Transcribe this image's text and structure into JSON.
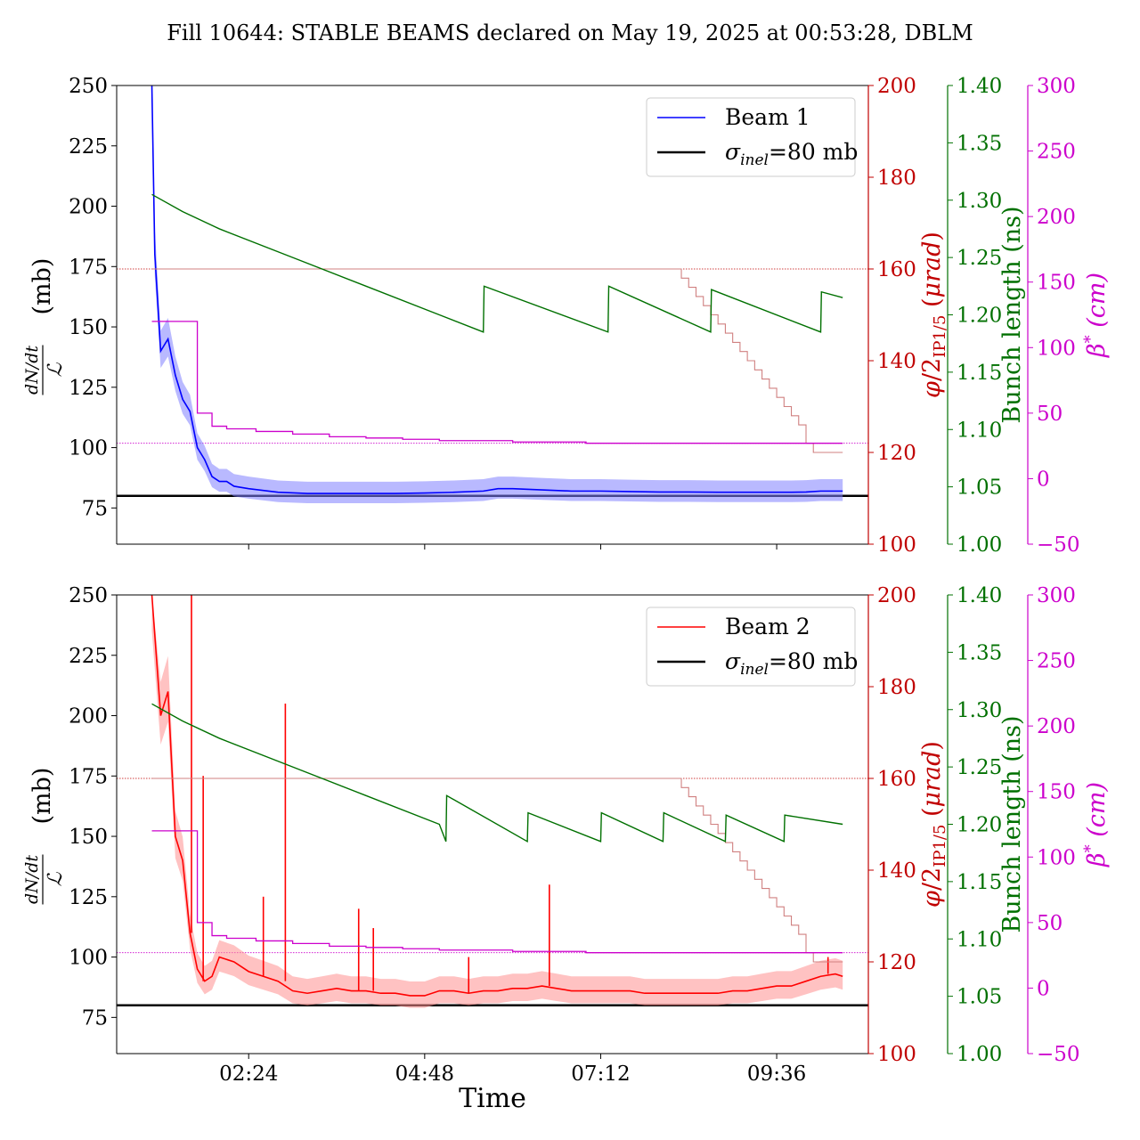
{
  "title": "Fill 10644: STABLE BEAMS declared on May 19, 2025 at 00:53:28, DBLM",
  "colors": {
    "beam1": "#0000ff",
    "beam1_band": "#8080ff",
    "beam2": "#ff0000",
    "beam2_band": "#ff9090",
    "sigma": "#000000",
    "crossing": "#c00000",
    "crossing_step": "#d08080",
    "bunch": "#007000",
    "beta": "#cc00cc",
    "axis": "#000000"
  },
  "axes": {
    "left_ylabel": "dN/dt / ℒ (mb)",
    "crossing_ylabel": "φ/2IP1/5 (μrad)",
    "bunch_ylabel": "Bunch length (ns)",
    "beta_ylabel": "β* (cm)",
    "xlabel": "Time"
  },
  "chart_data": [
    {
      "type": "line",
      "panel": "top",
      "title": "Fill 10644: STABLE BEAMS declared on May 19, 2025 at 00:53:28, DBLM",
      "xlabel": "",
      "xlim_hours": [
        0.6,
        10.85
      ],
      "x_ticks": [
        2.4,
        4.8,
        7.2,
        9.6
      ],
      "x_tick_labels": [
        "",
        "",
        "",
        ""
      ],
      "ylim_left": [
        60,
        250
      ],
      "yticks_left": [
        75,
        100,
        125,
        150,
        175,
        200,
        225,
        250
      ],
      "ylim_crossing": [
        100,
        200
      ],
      "yticks_crossing": [
        100,
        120,
        140,
        160,
        180,
        200
      ],
      "ylim_bunch": [
        1.0,
        1.4
      ],
      "yticks_bunch": [
        "1.00",
        "1.05",
        "1.10",
        "1.15",
        "1.20",
        "1.25",
        "1.30",
        "1.35",
        "1.40"
      ],
      "ylim_beta": [
        -50,
        300
      ],
      "yticks_beta": [
        -50,
        0,
        50,
        100,
        150,
        200,
        250,
        300
      ],
      "legend": {
        "placement": "upper-right",
        "entries": [
          "Beam 1",
          "σinel=80 mb"
        ]
      },
      "sigma_inel_mb": 80,
      "series": [
        {
          "name": "Beam 1",
          "axis": "left",
          "x": [
            1.08,
            1.12,
            1.2,
            1.3,
            1.4,
            1.5,
            1.6,
            1.7,
            1.8,
            1.9,
            2.0,
            2.1,
            2.2,
            2.4,
            2.8,
            3.2,
            3.6,
            4.0,
            4.4,
            4.8,
            5.2,
            5.6,
            5.8,
            6.0,
            6.4,
            6.8,
            7.2,
            7.6,
            8.0,
            8.4,
            8.8,
            9.2,
            9.6,
            9.8,
            10.0,
            10.2,
            10.4,
            10.5
          ],
          "y": [
            250,
            180,
            140,
            145,
            130,
            120,
            115,
            100,
            95,
            88,
            86,
            86,
            84,
            83,
            81.5,
            81,
            81,
            81,
            81,
            81.2,
            81.5,
            82,
            83,
            83,
            82.5,
            82,
            82,
            81.8,
            81.6,
            81.6,
            81.5,
            81.5,
            81.5,
            81.5,
            81.6,
            82,
            82,
            82
          ]
        },
        {
          "name": "crossing angle (Beam 1 panel)",
          "axis": "crossing",
          "x": [
            1.08,
            8.15,
            8.3,
            8.4,
            8.5,
            8.6,
            8.7,
            8.8,
            8.9,
            9.0,
            9.1,
            9.2,
            9.3,
            9.4,
            9.5,
            9.6,
            9.7,
            9.8,
            9.9,
            10.0,
            10.1,
            10.5
          ],
          "y": [
            160,
            160,
            158,
            156,
            154,
            152,
            150,
            148,
            146,
            144,
            142,
            140,
            138,
            136,
            134,
            132,
            130,
            128,
            126,
            122,
            120,
            120
          ]
        },
        {
          "name": "bunch length (Beam 1 panel)",
          "axis": "bunch",
          "x": [
            1.08,
            1.5,
            2.0,
            3.0,
            4.0,
            5.0,
            5.6,
            5.61,
            7.3,
            7.31,
            8.7,
            8.71,
            10.2,
            10.21,
            10.5
          ],
          "y": [
            1.305,
            1.29,
            1.275,
            1.25,
            1.225,
            1.2,
            1.185,
            1.225,
            1.185,
            1.225,
            1.185,
            1.222,
            1.185,
            1.22,
            1.215
          ]
        },
        {
          "name": "β* (Beam 1 panel)",
          "axis": "beta",
          "x": [
            1.08,
            1.5,
            1.7,
            1.9,
            2.1,
            2.5,
            3.0,
            3.5,
            4.0,
            4.5,
            5.0,
            6.0,
            7.0,
            8.0,
            9.0,
            10.0,
            10.5
          ],
          "y": [
            120,
            120,
            50,
            40,
            38,
            36,
            34,
            32,
            31,
            30,
            29,
            28,
            27,
            27,
            27,
            27,
            27
          ]
        }
      ],
      "reference_lines": [
        {
          "axis": "left",
          "y": 80,
          "style": "solid"
        },
        {
          "axis": "crossing",
          "y": 160,
          "style": "dotted"
        },
        {
          "axis": "crossing",
          "y": 122,
          "style": "dotted"
        }
      ]
    },
    {
      "type": "line",
      "panel": "bottom",
      "xlabel": "Time",
      "xlim_hours": [
        0.6,
        10.85
      ],
      "x_ticks": [
        2.4,
        4.8,
        7.2,
        9.6
      ],
      "x_tick_labels": [
        "02:24",
        "04:48",
        "07:12",
        "09:36"
      ],
      "ylim_left": [
        60,
        250
      ],
      "yticks_left": [
        75,
        100,
        125,
        150,
        175,
        200,
        225,
        250
      ],
      "ylim_crossing": [
        100,
        200
      ],
      "yticks_crossing": [
        100,
        120,
        140,
        160,
        180,
        200
      ],
      "ylim_bunch": [
        1.0,
        1.4
      ],
      "yticks_bunch": [
        "1.00",
        "1.05",
        "1.10",
        "1.15",
        "1.20",
        "1.25",
        "1.30",
        "1.35",
        "1.40"
      ],
      "ylim_beta": [
        -50,
        300
      ],
      "yticks_beta": [
        -50,
        0,
        50,
        100,
        150,
        200,
        250,
        300
      ],
      "legend": {
        "placement": "upper-right",
        "entries": [
          "Beam 2",
          "σinel=80 mb"
        ]
      },
      "sigma_inel_mb": 80,
      "series": [
        {
          "name": "Beam 2",
          "axis": "left",
          "x": [
            1.08,
            1.2,
            1.3,
            1.4,
            1.5,
            1.6,
            1.7,
            1.8,
            1.9,
            2.0,
            2.2,
            2.4,
            2.6,
            2.8,
            3.0,
            3.2,
            3.4,
            3.6,
            3.8,
            4.0,
            4.2,
            4.4,
            4.6,
            4.8,
            5.0,
            5.2,
            5.4,
            5.6,
            5.8,
            6.0,
            6.2,
            6.4,
            6.6,
            6.8,
            7.0,
            7.2,
            7.4,
            7.6,
            7.8,
            8.0,
            8.2,
            8.4,
            8.6,
            8.8,
            9.0,
            9.2,
            9.4,
            9.6,
            9.8,
            10.0,
            10.2,
            10.4,
            10.5
          ],
          "y": [
            250,
            200,
            210,
            150,
            140,
            110,
            95,
            90,
            92,
            100,
            98,
            94,
            92,
            90,
            86,
            85,
            86,
            87,
            86,
            86,
            85,
            85,
            84,
            84,
            86,
            86,
            85,
            86,
            86,
            87,
            87,
            88,
            87,
            86,
            86,
            86,
            86,
            86,
            85,
            85,
            85,
            85,
            85,
            85,
            86,
            86,
            87,
            88,
            88,
            90,
            92,
            93,
            92
          ]
        },
        {
          "name": "crossing angle (Beam 2 panel)",
          "axis": "crossing",
          "x": [
            1.08,
            8.15,
            8.3,
            8.4,
            8.5,
            8.6,
            8.7,
            8.8,
            8.9,
            9.0,
            9.1,
            9.2,
            9.3,
            9.4,
            9.5,
            9.6,
            9.7,
            9.8,
            9.9,
            10.0,
            10.1,
            10.5
          ],
          "y": [
            160,
            160,
            158,
            156,
            154,
            152,
            150,
            148,
            146,
            144,
            142,
            140,
            138,
            136,
            134,
            132,
            130,
            128,
            126,
            122,
            120,
            120
          ]
        },
        {
          "name": "bunch length (Beam 2 panel)",
          "axis": "bunch",
          "x": [
            1.08,
            1.5,
            2.0,
            3.0,
            4.0,
            5.0,
            5.09,
            5.1,
            6.2,
            6.21,
            7.2,
            7.21,
            8.05,
            8.06,
            8.9,
            8.91,
            9.7,
            9.71,
            10.5
          ],
          "y": [
            1.305,
            1.29,
            1.275,
            1.25,
            1.225,
            1.2,
            1.185,
            1.225,
            1.185,
            1.21,
            1.185,
            1.21,
            1.185,
            1.21,
            1.185,
            1.208,
            1.185,
            1.208,
            1.2
          ]
        },
        {
          "name": "β* (Beam 2 panel)",
          "axis": "beta",
          "x": [
            1.08,
            1.5,
            1.7,
            1.9,
            2.1,
            2.5,
            3.0,
            3.5,
            4.0,
            4.5,
            5.0,
            6.0,
            7.0,
            8.0,
            9.0,
            10.0,
            10.5
          ],
          "y": [
            120,
            120,
            50,
            40,
            38,
            36,
            34,
            32,
            31,
            30,
            29,
            28,
            27,
            27,
            27,
            27,
            27
          ]
        }
      ],
      "spikes": [
        {
          "x": 1.62,
          "y": 250
        },
        {
          "x": 1.78,
          "y": 175
        },
        {
          "x": 2.6,
          "y": 125
        },
        {
          "x": 2.9,
          "y": 205
        },
        {
          "x": 3.9,
          "y": 120
        },
        {
          "x": 4.1,
          "y": 112
        },
        {
          "x": 5.4,
          "y": 100
        },
        {
          "x": 6.5,
          "y": 130
        },
        {
          "x": 10.3,
          "y": 100
        }
      ],
      "reference_lines": [
        {
          "axis": "left",
          "y": 80,
          "style": "solid"
        },
        {
          "axis": "crossing",
          "y": 160,
          "style": "dotted"
        },
        {
          "axis": "crossing",
          "y": 122,
          "style": "dotted"
        }
      ]
    }
  ]
}
